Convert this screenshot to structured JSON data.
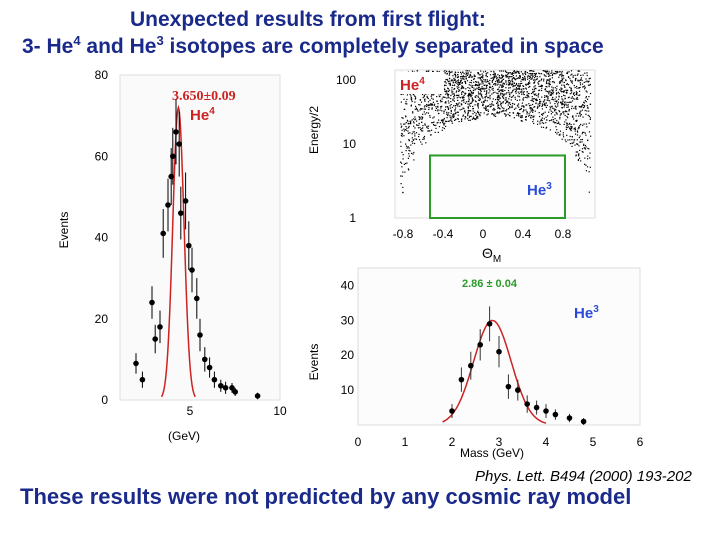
{
  "title_line1": "Unexpected results from first flight:",
  "title_line2_parts": [
    "3- He",
    "4",
    " and He",
    "3",
    " isotopes are completely separated in space"
  ],
  "reference": "Phys. Lett. B494 (2000) 193-202",
  "bottom_text": "These results were not predicted by any cosmic ray model",
  "colors": {
    "title": "#1a2a8a",
    "fit": "#cc2222",
    "box": "#2a9a2a",
    "label": "#cc2222",
    "he3_label": "#2a4ad8"
  },
  "chart_data": [
    {
      "type": "scatter",
      "ylabel": "Events",
      "xlabel": "(GeV)",
      "yticks": [
        "80",
        "60",
        "40",
        "20",
        "0"
      ],
      "xticks": [
        "5",
        "10"
      ],
      "ylim": [
        0,
        80
      ],
      "xlim": [
        0,
        10
      ],
      "fit_label": "3.650±0.09",
      "species_label": "He",
      "species_sup": "4",
      "fit": {
        "mean": 3.65,
        "sigma": 0.35,
        "amplitude": 72
      },
      "points": [
        {
          "x": 1.0,
          "y": 9,
          "err": 2.5
        },
        {
          "x": 1.4,
          "y": 5,
          "err": 2
        },
        {
          "x": 2.0,
          "y": 24,
          "err": 4
        },
        {
          "x": 2.2,
          "y": 15,
          "err": 3.5
        },
        {
          "x": 2.5,
          "y": 18,
          "err": 4
        },
        {
          "x": 2.7,
          "y": 41,
          "err": 6
        },
        {
          "x": 3.0,
          "y": 48,
          "err": 6.5
        },
        {
          "x": 3.2,
          "y": 55,
          "err": 7
        },
        {
          "x": 3.3,
          "y": 60,
          "err": 7
        },
        {
          "x": 3.5,
          "y": 66,
          "err": 8
        },
        {
          "x": 3.7,
          "y": 63,
          "err": 8
        },
        {
          "x": 3.8,
          "y": 46,
          "err": 6.5
        },
        {
          "x": 4.1,
          "y": 49,
          "err": 7
        },
        {
          "x": 4.3,
          "y": 38,
          "err": 6
        },
        {
          "x": 4.5,
          "y": 32,
          "err": 5.5
        },
        {
          "x": 4.8,
          "y": 25,
          "err": 5
        },
        {
          "x": 5.0,
          "y": 16,
          "err": 4
        },
        {
          "x": 5.3,
          "y": 10,
          "err": 3
        },
        {
          "x": 5.6,
          "y": 8,
          "err": 2.5
        },
        {
          "x": 5.9,
          "y": 5,
          "err": 2
        },
        {
          "x": 6.3,
          "y": 3.5,
          "err": 1.5
        },
        {
          "x": 6.6,
          "y": 3,
          "err": 1.5
        },
        {
          "x": 7.0,
          "y": 3,
          "err": 1.2
        },
        {
          "x": 7.2,
          "y": 2,
          "err": 1
        },
        {
          "x": 8.6,
          "y": 1,
          "err": 0.8
        }
      ]
    },
    {
      "type": "scatter",
      "ylabel": "Energy/2",
      "xlabel": "ΘM",
      "xticks": [
        "-0.8",
        "-0.4",
        "0",
        "0.4",
        "0.8"
      ],
      "yticks": [
        "100",
        "10",
        "1"
      ],
      "xlim": [
        -1,
        1
      ],
      "ylim": [
        1,
        100
      ],
      "yscale": "log",
      "label_top": "He4",
      "label_box": "He3",
      "box": {
        "x": [
          -0.65,
          0.7
        ],
        "y": [
          1,
          7
        ]
      },
      "point_count": 2200
    },
    {
      "type": "scatter",
      "ylabel": "Events",
      "xlabel": "Mass (GeV)",
      "xticks": [
        "0",
        "1",
        "2",
        "3",
        "4",
        "5",
        "6"
      ],
      "yticks": [
        "40",
        "30",
        "20",
        "10"
      ],
      "xlim": [
        0,
        6
      ],
      "ylim": [
        0,
        45
      ],
      "fit_label": "2.86 ± 0.04",
      "species_label": "He",
      "species_sup": "3",
      "fit": {
        "mean": 2.86,
        "sigma": 0.4,
        "amplitude": 30
      },
      "points": [
        {
          "x": 2.0,
          "y": 4,
          "err": 2
        },
        {
          "x": 2.2,
          "y": 13,
          "err": 3.5
        },
        {
          "x": 2.4,
          "y": 17,
          "err": 4
        },
        {
          "x": 2.6,
          "y": 23,
          "err": 4.5
        },
        {
          "x": 2.8,
          "y": 29,
          "err": 5
        },
        {
          "x": 3.0,
          "y": 21,
          "err": 4.5
        },
        {
          "x": 3.2,
          "y": 11,
          "err": 3.5
        },
        {
          "x": 3.4,
          "y": 10,
          "err": 3
        },
        {
          "x": 3.6,
          "y": 6,
          "err": 2.5
        },
        {
          "x": 3.8,
          "y": 5,
          "err": 2
        },
        {
          "x": 4.0,
          "y": 4,
          "err": 2
        },
        {
          "x": 4.2,
          "y": 3,
          "err": 1.5
        },
        {
          "x": 4.5,
          "y": 2,
          "err": 1.2
        },
        {
          "x": 4.8,
          "y": 1,
          "err": 1
        }
      ]
    }
  ]
}
